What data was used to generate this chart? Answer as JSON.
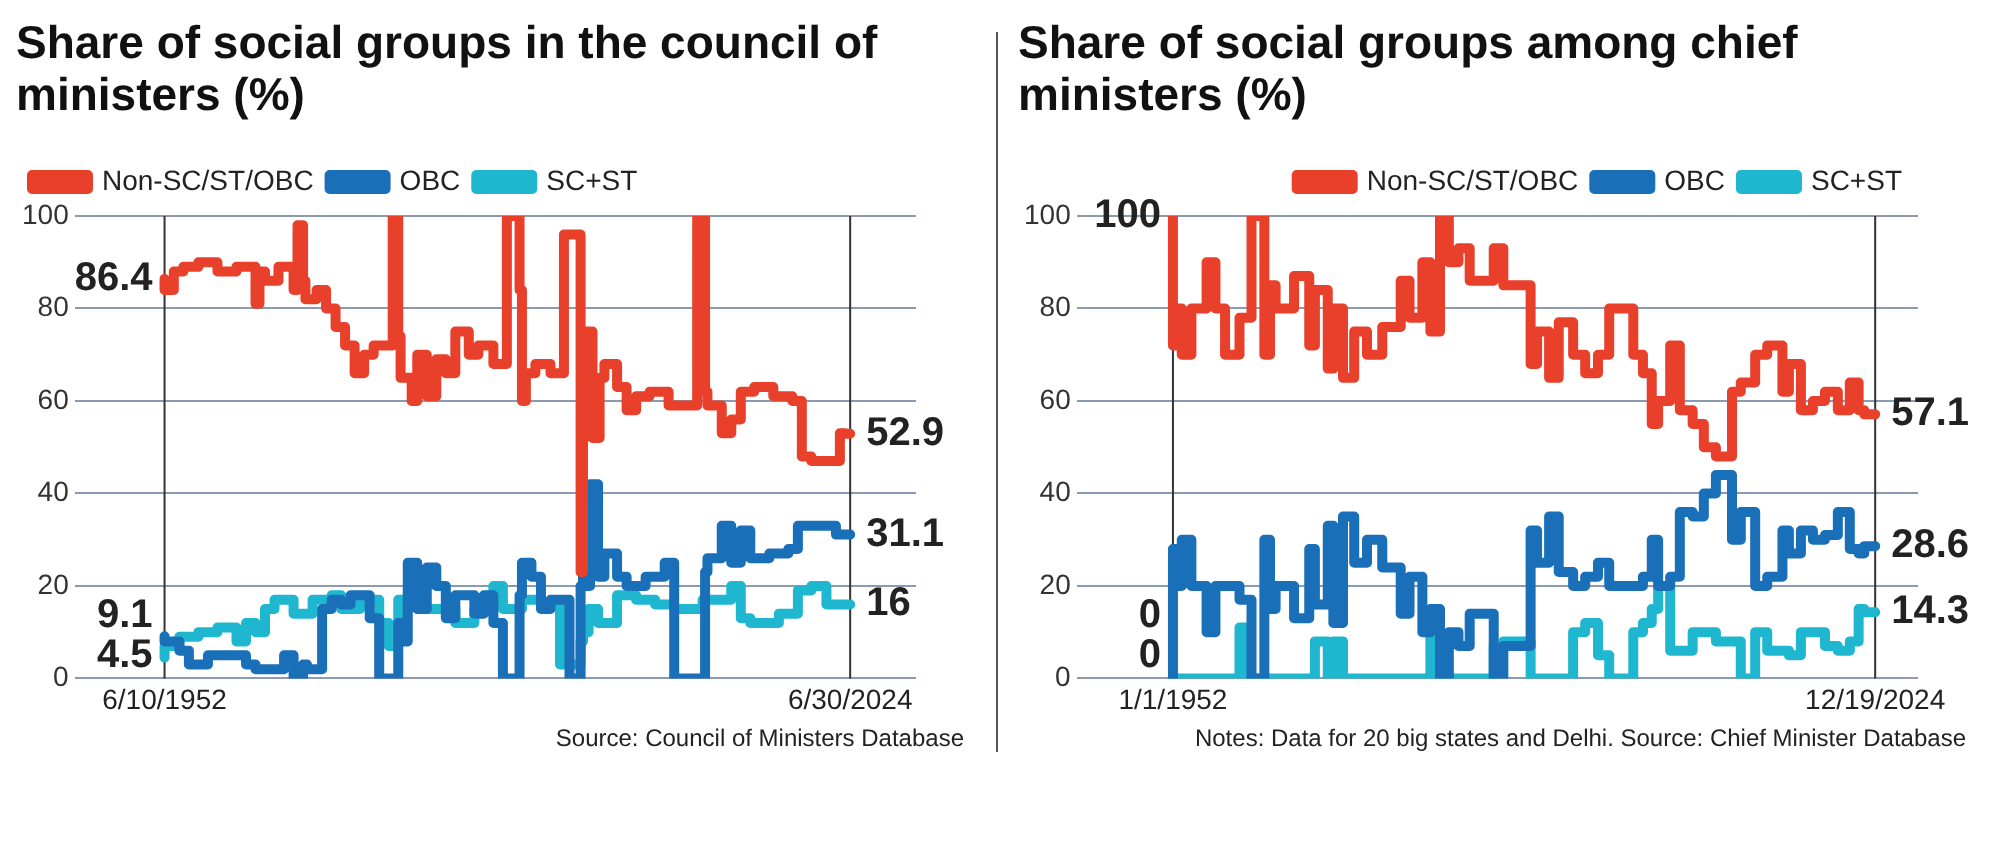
{
  "chart_data": [
    {
      "type": "step",
      "title": "Share of social groups in the council of ministers (%)",
      "xlim": [
        "1943-01",
        "2031-06"
      ],
      "xticks": [
        {
          "value": "1952-06-10",
          "label": "6/10/1952"
        },
        {
          "value": "2024-06-30",
          "label": "6/30/2024"
        }
      ],
      "ylim": [
        0,
        100
      ],
      "yticks": [
        0,
        20,
        40,
        60,
        80,
        100
      ],
      "grid": "y",
      "legend": "top left",
      "line_style": "solid",
      "ref_lines": [
        {
          "axis": "x",
          "value": "1952-06-10",
          "color": "#333333"
        },
        {
          "axis": "x",
          "value": "2024-06-30",
          "color": "#333333"
        }
      ],
      "annotations": [
        "Source: Council of Ministers Database"
      ],
      "series": [
        {
          "name": "Non-SC/ST/OBC",
          "color": "#e8402a",
          "x": [
            "1952-06-10",
            "1953-06",
            "1954-06",
            "1956-01",
            "1958-01",
            "1960-01",
            "1962-01",
            "1962-06",
            "1963-01",
            "1964-06",
            "1966-01",
            "1966-06",
            "1967-01",
            "1967-04",
            "1968-06",
            "1969-06",
            "1970-06",
            "1971-06",
            "1972-06",
            "1973-06",
            "1974-06",
            "1976-06",
            "1977-01",
            "1977-04",
            "1978-06",
            "1979-01",
            "1980-01",
            "1981-01",
            "1982-01",
            "1983-01",
            "1984-06",
            "1985-06",
            "1987-01",
            "1988-06",
            "1989-10",
            "1990-01",
            "1990-06",
            "1991-06",
            "1993-01",
            "1994-06",
            "1996-03",
            "1996-06",
            "1996-09",
            "1997-06",
            "1998-03",
            "1998-09",
            "2000-01",
            "2001-01",
            "2002-01",
            "2003-06",
            "2005-06",
            "2008-06",
            "2009-04",
            "2009-07",
            "2011-01",
            "2012-01",
            "2013-01",
            "2014-06",
            "2016-06",
            "2018-06",
            "2019-06",
            "2020-06",
            "2023-06",
            "2024-01",
            "2024-06-30"
          ],
          "values": [
            86.4,
            84,
            88,
            89,
            90,
            88,
            89,
            81,
            88,
            86,
            89,
            84,
            98,
            86,
            82,
            84,
            80,
            76,
            72,
            66,
            70,
            72,
            100,
            74,
            65,
            60,
            70,
            61,
            69,
            66,
            75,
            70,
            72,
            68,
            100,
            84,
            60,
            66,
            68,
            66,
            96,
            23,
            65,
            75,
            52,
            65,
            68,
            63,
            58,
            61,
            62,
            59,
            100,
            62,
            59,
            53,
            56,
            62,
            63,
            61,
            60,
            48,
            47,
            53,
            52.9
          ],
          "value_labels": [
            "86.4",
            null,
            null,
            null,
            null,
            null,
            null,
            null,
            null,
            null,
            null,
            null,
            null,
            null,
            null,
            null,
            null,
            null,
            null,
            null,
            null,
            null,
            null,
            null,
            null,
            null,
            null,
            null,
            null,
            null,
            null,
            null,
            null,
            null,
            null,
            null,
            null,
            null,
            null,
            null,
            null,
            null,
            null,
            null,
            null,
            null,
            null,
            null,
            null,
            null,
            null,
            null,
            null,
            null,
            null,
            null,
            null,
            null,
            null,
            null,
            null,
            null,
            null,
            null,
            "52.9"
          ]
        },
        {
          "name": "OBC",
          "color": "#1a6fb9",
          "x": [
            "1952-06-10",
            "1954-01",
            "1955-01",
            "1957-01",
            "1961-01",
            "1962-01",
            "1965-01",
            "1966-01",
            "1967-01",
            "1967-06",
            "1969-01",
            "1970-01",
            "1971-01",
            "1972-01",
            "1974-01",
            "1975-01",
            "1977-01",
            "1977-06",
            "1978-01",
            "1979-01",
            "1980-01",
            "1981-01",
            "1982-01",
            "1983-01",
            "1985-01",
            "1986-01",
            "1987-01",
            "1988-01",
            "1989-10",
            "1990-01",
            "1991-01",
            "1992-01",
            "1993-01",
            "1995-01",
            "1996-03",
            "1996-06",
            "1996-09",
            "1997-03",
            "1998-01",
            "1998-09",
            "2000-01",
            "2001-01",
            "2003-01",
            "2005-01",
            "2006-01",
            "2009-04",
            "2009-07",
            "2011-01",
            "2012-01",
            "2013-01",
            "2014-01",
            "2016-01",
            "2018-01",
            "2019-01",
            "2020-06",
            "2023-01",
            "2024-06-30"
          ],
          "values": [
            9.1,
            8,
            6,
            3,
            5,
            3,
            2,
            5,
            0,
            3,
            2,
            15,
            17,
            16,
            18,
            13,
            0,
            12,
            8,
            25,
            15,
            24,
            20,
            13,
            18,
            14,
            18,
            12,
            0,
            18,
            25,
            22,
            15,
            17,
            0,
            20,
            42,
            20,
            42,
            22,
            27,
            22,
            20,
            22,
            25,
            0,
            23,
            26,
            33,
            25,
            32,
            26,
            27,
            28,
            33,
            33,
            31.1
          ],
          "value_labels": [
            "9.1",
            null,
            null,
            null,
            null,
            null,
            null,
            null,
            null,
            null,
            null,
            null,
            null,
            null,
            null,
            null,
            null,
            null,
            null,
            null,
            null,
            null,
            null,
            null,
            null,
            null,
            null,
            null,
            null,
            null,
            null,
            null,
            null,
            null,
            null,
            null,
            null,
            null,
            null,
            null,
            null,
            null,
            null,
            null,
            null,
            null,
            null,
            null,
            null,
            null,
            null,
            null,
            null,
            null,
            null,
            null,
            "31.1"
          ]
        },
        {
          "name": "SC+ST",
          "color": "#1fb6d0",
          "x": [
            "1952-06-10",
            "1954-01",
            "1956-01",
            "1958-01",
            "1960-01",
            "1961-01",
            "1962-01",
            "1963-01",
            "1964-01",
            "1966-01",
            "1968-01",
            "1970-01",
            "1971-01",
            "1973-01",
            "1975-01",
            "1976-01",
            "1977-01",
            "1978-01",
            "1979-01",
            "1983-01",
            "1985-01",
            "1987-01",
            "1988-01",
            "1990-01",
            "1992-01",
            "1994-01",
            "1996-03",
            "1996-06",
            "1997-01",
            "1998-01",
            "2000-01",
            "2002-01",
            "2004-01",
            "2006-01",
            "2009-01",
            "2012-01",
            "2013-01",
            "2014-01",
            "2017-01",
            "2019-01",
            "2020-06",
            "2022-01",
            "2023-01",
            "2024-06-30"
          ],
          "values": [
            4.5,
            7,
            9,
            10,
            11,
            8,
            12,
            10,
            15,
            17,
            14,
            17,
            18,
            15,
            17,
            12,
            7,
            17,
            16,
            15,
            12,
            15,
            20,
            15,
            17,
            16,
            3,
            8,
            10,
            15,
            12,
            18,
            17,
            16,
            15,
            17,
            20,
            13,
            12,
            14,
            19,
            20,
            16,
            16
          ],
          "value_labels": [
            "4.5",
            null,
            null,
            null,
            null,
            null,
            null,
            null,
            null,
            null,
            null,
            null,
            null,
            null,
            null,
            null,
            null,
            null,
            null,
            null,
            null,
            null,
            null,
            null,
            null,
            null,
            null,
            null,
            null,
            null,
            null,
            null,
            null,
            null,
            null,
            null,
            null,
            null,
            null,
            null,
            null,
            null,
            null,
            "16"
          ]
        }
      ]
    },
    {
      "type": "step",
      "title": "Share of social groups among chief ministers (%)",
      "xlim": [
        "1942-01",
        "2029-06"
      ],
      "xticks": [
        {
          "value": "1952-01-01",
          "label": "1/1/1952"
        },
        {
          "value": "2024-12-19",
          "label": "12/19/2024"
        }
      ],
      "ylim": [
        0,
        100
      ],
      "yticks": [
        0,
        20,
        40,
        60,
        80,
        100
      ],
      "grid": "y",
      "legend": "top right",
      "line_style": "solid",
      "ref_lines": [
        {
          "axis": "x",
          "value": "1952-01-01",
          "color": "#333333"
        },
        {
          "axis": "x",
          "value": "2024-12-19",
          "color": "#333333"
        }
      ],
      "annotations": [
        "Notes: Data for 20 big states and Delhi. Source: Chief Minister Database"
      ],
      "x": [
        "1952-01-01",
        "1952-04",
        "1952-12",
        "1953-12",
        "1955-07",
        "1956-06",
        "1957-06",
        "1958-12",
        "1959-08",
        "1960-03",
        "1961-07",
        "1962-02",
        "1962-09",
        "1964-08",
        "1966-03",
        "1966-10",
        "1968-02",
        "1968-09",
        "1969-09",
        "1970-11",
        "1972-03",
        "1973-10",
        "1975-09",
        "1976-08",
        "1977-12",
        "1978-10",
        "1979-10",
        "1980-09",
        "1981-09",
        "1982-11",
        "1985-05",
        "1986-05",
        "1989-03",
        "1989-11",
        "1991-02",
        "1992-02",
        "1993-08",
        "1994-11",
        "1996-03",
        "1997-05",
        "1999-11",
        "2000-11",
        "2001-10",
        "2002-06",
        "2003-09",
        "2004-09",
        "2006-01",
        "2007-03",
        "2008-06",
        "2010-02",
        "2011-01",
        "2012-07",
        "2013-10",
        "2015-05",
        "2016-01",
        "2017-04",
        "2018-07",
        "2019-10",
        "2021-02",
        "2022-05",
        "2023-04",
        "2023-11",
        "2024-12-19"
      ],
      "series": [
        {
          "name": "Non-SC/ST/OBC",
          "color": "#e8402a",
          "values": [
            100,
            72,
            80,
            70,
            80,
            90,
            80,
            70,
            78,
            78,
            100,
            70,
            85,
            80,
            87,
            72,
            84,
            67,
            80,
            65,
            75,
            70,
            76,
            86,
            78,
            90,
            75,
            100,
            90,
            93,
            86,
            93,
            85,
            68,
            75,
            65,
            77,
            70,
            66,
            70,
            80,
            70,
            66,
            55,
            60,
            72,
            58,
            55,
            50,
            48,
            62,
            64,
            70,
            72,
            62,
            68,
            58,
            60,
            62,
            58,
            64,
            58,
            57.1
          ],
          "value_labels": [
            "100",
            null,
            null,
            null,
            null,
            null,
            null,
            null,
            null,
            null,
            null,
            null,
            null,
            null,
            null,
            null,
            null,
            null,
            null,
            null,
            null,
            null,
            null,
            null,
            null,
            null,
            null,
            null,
            null,
            null,
            null,
            null,
            null,
            null,
            null,
            null,
            null,
            null,
            null,
            null,
            null,
            null,
            null,
            null,
            null,
            null,
            null,
            null,
            null,
            null,
            null,
            null,
            null,
            null,
            null,
            null,
            null,
            null,
            null,
            null,
            null,
            null,
            "57.1"
          ]
        },
        {
          "name": "OBC",
          "color": "#1a6fb9",
          "values": [
            0,
            28,
            20,
            30,
            20,
            10,
            20,
            20,
            17,
            17,
            0,
            30,
            15,
            20,
            13,
            28,
            16,
            33,
            12,
            35,
            25,
            30,
            24,
            14,
            22,
            10,
            15,
            0,
            10,
            7,
            14,
            0,
            7,
            32,
            25,
            35,
            23,
            20,
            22,
            25,
            20,
            20,
            22,
            30,
            20,
            22,
            36,
            35,
            40,
            44,
            30,
            36,
            20,
            22,
            32,
            27,
            32,
            30,
            31,
            36,
            28,
            27,
            28.6
          ],
          "value_labels": [
            "0",
            null,
            null,
            null,
            null,
            null,
            null,
            null,
            null,
            null,
            null,
            null,
            null,
            null,
            null,
            null,
            null,
            null,
            null,
            null,
            null,
            null,
            null,
            null,
            null,
            null,
            null,
            null,
            null,
            null,
            null,
            null,
            null,
            null,
            null,
            null,
            null,
            null,
            null,
            null,
            null,
            null,
            null,
            null,
            null,
            null,
            null,
            null,
            null,
            null,
            null,
            null,
            null,
            null,
            null,
            null,
            null,
            null,
            null,
            null,
            null,
            null,
            "28.6"
          ]
        },
        {
          "name": "SC+ST",
          "color": "#1fb6d0",
          "values": [
            0,
            0,
            0,
            0,
            0,
            0,
            0,
            0,
            11,
            0,
            0,
            0,
            0,
            0,
            0,
            0,
            8,
            0,
            8,
            0,
            0,
            0,
            0,
            0,
            0,
            0,
            10,
            0,
            0,
            0,
            0,
            7,
            8,
            0,
            0,
            0,
            0,
            10,
            12,
            5,
            0,
            10,
            12,
            15,
            20,
            6,
            6,
            10,
            10,
            8,
            8,
            0,
            10,
            6,
            6,
            5,
            10,
            10,
            7,
            6,
            8,
            15,
            14.3
          ],
          "value_labels": [
            "0",
            null,
            null,
            null,
            null,
            null,
            null,
            null,
            null,
            null,
            null,
            null,
            null,
            null,
            null,
            null,
            null,
            null,
            null,
            null,
            null,
            null,
            null,
            null,
            null,
            null,
            null,
            null,
            null,
            null,
            null,
            null,
            null,
            null,
            null,
            null,
            null,
            null,
            null,
            null,
            null,
            null,
            null,
            null,
            null,
            null,
            null,
            null,
            null,
            null,
            null,
            null,
            null,
            null,
            null,
            null,
            null,
            null,
            null,
            null,
            null,
            null,
            "14.3"
          ]
        }
      ]
    }
  ]
}
